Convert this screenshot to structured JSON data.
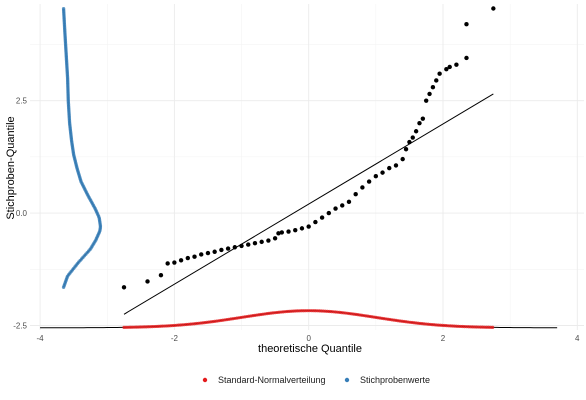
{
  "chart_data": {
    "type": "scatter",
    "xlabel": "theoretische Quantile",
    "ylabel": "Stichproben-Quantile",
    "x_ticks": [
      -4,
      -2,
      0,
      2,
      4
    ],
    "y_ticks": [
      -2.5,
      0.0,
      2.5
    ],
    "x_tick_labels": [
      "-4",
      "-2",
      "0",
      "2",
      "4"
    ],
    "y_tick_labels": [
      "-2.5",
      "0.0",
      "2.5"
    ],
    "xlim": [
      -4.15,
      4.1
    ],
    "ylim": [
      -2.6,
      4.65
    ],
    "grid": true,
    "legend_position": "bottom",
    "legend": [
      {
        "label": "Standard-Normalverteilung",
        "color": "#e41a1c"
      },
      {
        "label": "Stichprobenwerte",
        "color": "#377eb8"
      }
    ],
    "qq_points": {
      "color": "#000000",
      "points": [
        [
          -2.75,
          -1.65
        ],
        [
          -2.4,
          -1.52
        ],
        [
          -2.2,
          -1.38
        ],
        [
          -2.1,
          -1.12
        ],
        [
          -2.0,
          -1.1
        ],
        [
          -1.9,
          -1.05
        ],
        [
          -1.8,
          -1.0
        ],
        [
          -1.7,
          -0.97
        ],
        [
          -1.6,
          -0.92
        ],
        [
          -1.5,
          -0.89
        ],
        [
          -1.4,
          -0.86
        ],
        [
          -1.3,
          -0.82
        ],
        [
          -1.2,
          -0.79
        ],
        [
          -1.1,
          -0.76
        ],
        [
          -1.0,
          -0.73
        ],
        [
          -0.9,
          -0.7
        ],
        [
          -0.8,
          -0.67
        ],
        [
          -0.7,
          -0.64
        ],
        [
          -0.6,
          -0.61
        ],
        [
          -0.5,
          -0.56
        ],
        [
          -0.45,
          -0.45
        ],
        [
          -0.4,
          -0.43
        ],
        [
          -0.3,
          -0.41
        ],
        [
          -0.2,
          -0.38
        ],
        [
          -0.1,
          -0.34
        ],
        [
          0.0,
          -0.3
        ],
        [
          0.1,
          -0.2
        ],
        [
          0.2,
          -0.1
        ],
        [
          0.3,
          0.0
        ],
        [
          0.4,
          0.1
        ],
        [
          0.5,
          0.17
        ],
        [
          0.6,
          0.25
        ],
        [
          0.7,
          0.42
        ],
        [
          0.8,
          0.57
        ],
        [
          0.9,
          0.7
        ],
        [
          1.0,
          0.82
        ],
        [
          1.1,
          0.9
        ],
        [
          1.2,
          1.0
        ],
        [
          1.3,
          1.06
        ],
        [
          1.4,
          1.2
        ],
        [
          1.45,
          1.42
        ],
        [
          1.5,
          1.58
        ],
        [
          1.55,
          1.68
        ],
        [
          1.6,
          1.82
        ],
        [
          1.65,
          2.0
        ],
        [
          1.7,
          2.1
        ],
        [
          1.75,
          2.5
        ],
        [
          1.8,
          2.65
        ],
        [
          1.85,
          2.8
        ],
        [
          1.9,
          2.95
        ],
        [
          1.95,
          3.1
        ],
        [
          2.05,
          3.2
        ],
        [
          2.1,
          3.25
        ],
        [
          2.2,
          3.3
        ],
        [
          2.35,
          3.45
        ],
        [
          2.35,
          4.2
        ],
        [
          2.75,
          4.55
        ]
      ]
    },
    "reference_line": {
      "color": "#000000",
      "from": [
        -2.75,
        -2.25
      ],
      "to": [
        2.75,
        2.65
      ]
    },
    "normal_density": {
      "name": "Standard-Normalverteilung",
      "color": "#e41a1c",
      "baseline": -2.55,
      "peak": 0.38,
      "curve_x_range": [
        -4.0,
        3.7
      ],
      "point_x_range": [
        -2.75,
        2.75
      ]
    },
    "sample_density": {
      "name": "Stichprobenwerte",
      "color": "#377eb8",
      "baseline_x": -3.65,
      "y_range": [
        -1.65,
        4.55
      ],
      "profile": [
        [
          -1.65,
          0.0
        ],
        [
          -1.4,
          0.06
        ],
        [
          -1.1,
          0.22
        ],
        [
          -0.8,
          0.4
        ],
        [
          -0.6,
          0.48
        ],
        [
          -0.4,
          0.54
        ],
        [
          -0.3,
          0.55
        ],
        [
          -0.1,
          0.53
        ],
        [
          0.1,
          0.47
        ],
        [
          0.4,
          0.36
        ],
        [
          0.7,
          0.26
        ],
        [
          1.0,
          0.2
        ],
        [
          1.3,
          0.15
        ],
        [
          1.6,
          0.12
        ],
        [
          2.0,
          0.09
        ],
        [
          2.5,
          0.07
        ],
        [
          3.0,
          0.06
        ],
        [
          3.5,
          0.04
        ],
        [
          4.0,
          0.02
        ],
        [
          4.55,
          0.0
        ]
      ]
    }
  }
}
